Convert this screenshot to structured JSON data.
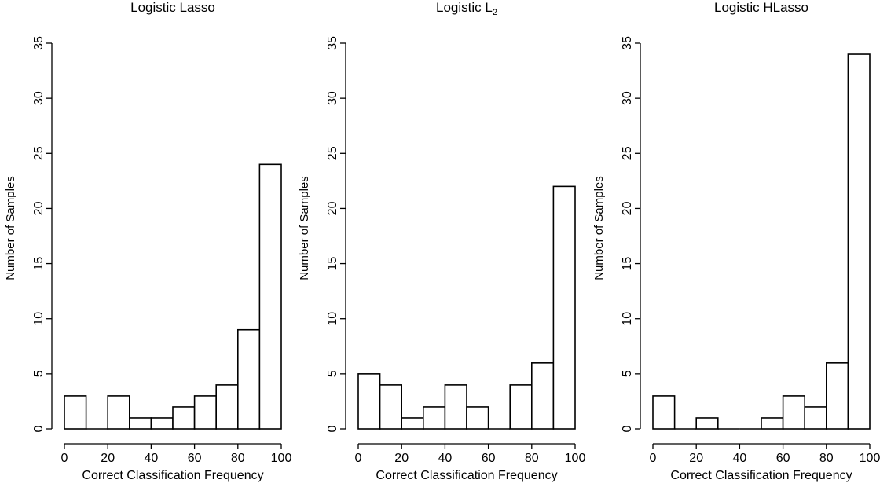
{
  "chart_data": [
    {
      "type": "bar",
      "title": "Logistic Lasso",
      "xlabel": "Correct Classification Frequency",
      "ylabel": "Number of Samples",
      "bin_edges": [
        0,
        10,
        20,
        30,
        40,
        50,
        60,
        70,
        80,
        90,
        100
      ],
      "values": [
        3,
        0,
        3,
        1,
        1,
        2,
        3,
        4,
        9,
        24
      ],
      "xticks": [
        0,
        20,
        40,
        60,
        80,
        100
      ],
      "yticks": [
        0,
        5,
        10,
        15,
        20,
        25,
        30,
        35
      ],
      "xlim": [
        0,
        100
      ],
      "ylim": [
        0,
        35
      ]
    },
    {
      "type": "bar",
      "title": "Logistic L",
      "title_sub": "2",
      "xlabel": "Correct Classification Frequency",
      "ylabel": "Number of Samples",
      "bin_edges": [
        0,
        10,
        20,
        30,
        40,
        50,
        60,
        70,
        80,
        90,
        100
      ],
      "values": [
        5,
        4,
        1,
        2,
        4,
        2,
        0,
        4,
        6,
        22
      ],
      "xticks": [
        0,
        20,
        40,
        60,
        80,
        100
      ],
      "yticks": [
        0,
        5,
        10,
        15,
        20,
        25,
        30,
        35
      ],
      "xlim": [
        0,
        100
      ],
      "ylim": [
        0,
        35
      ]
    },
    {
      "type": "bar",
      "title": "Logistic HLasso",
      "xlabel": "Correct Classification Frequency",
      "ylabel": "Number of Samples",
      "bin_edges": [
        0,
        10,
        20,
        30,
        40,
        50,
        60,
        70,
        80,
        90,
        100
      ],
      "values": [
        3,
        0,
        1,
        0,
        0,
        1,
        3,
        2,
        6,
        34
      ],
      "xticks": [
        0,
        20,
        40,
        60,
        80,
        100
      ],
      "yticks": [
        0,
        5,
        10,
        15,
        20,
        25,
        30,
        35
      ],
      "xlim": [
        0,
        100
      ],
      "ylim": [
        0,
        35
      ]
    }
  ]
}
